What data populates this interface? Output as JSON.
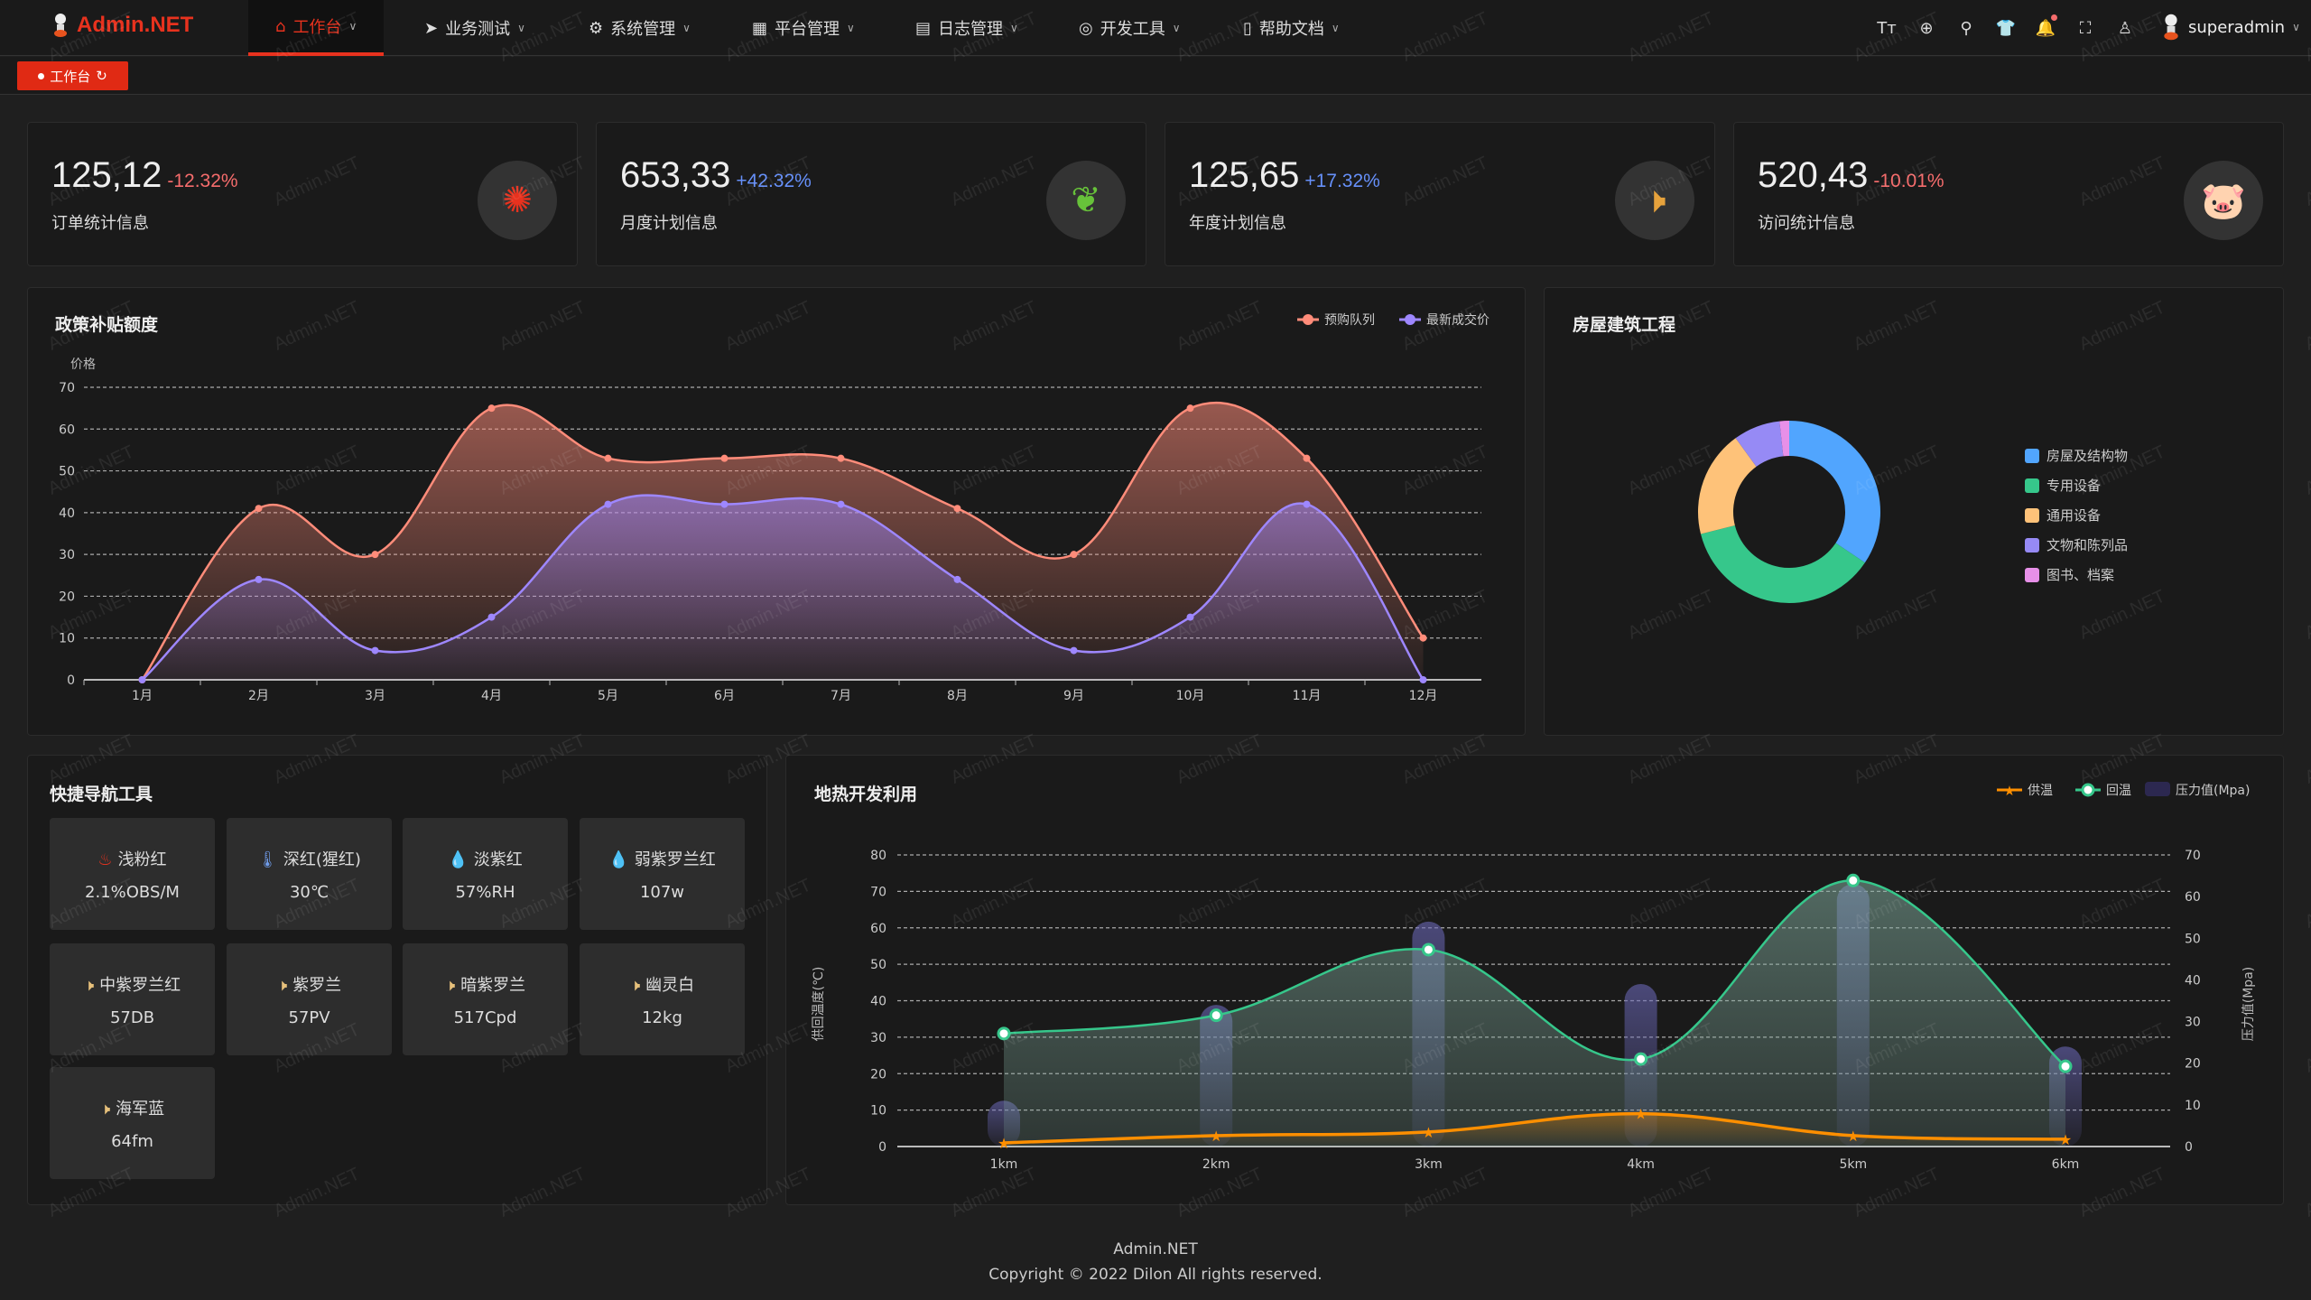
{
  "header": {
    "logo": "Admin.NET",
    "menu": [
      {
        "label": "工作台",
        "icon": "home-icon",
        "active": true
      },
      {
        "label": "业务测试",
        "icon": "send-icon"
      },
      {
        "label": "系统管理",
        "icon": "gear-icon"
      },
      {
        "label": "平台管理",
        "icon": "grid-icon"
      },
      {
        "label": "日志管理",
        "icon": "document-icon"
      },
      {
        "label": "开发工具",
        "icon": "chip-icon"
      },
      {
        "label": "帮助文档",
        "icon": "book-icon"
      }
    ],
    "tools": [
      "font-size-icon",
      "language-icon",
      "search-icon",
      "theme-shirt-icon",
      "bell-icon",
      "fullscreen-icon",
      "user-icon"
    ],
    "username": "superadmin"
  },
  "tags": [
    {
      "label": "工作台"
    }
  ],
  "stats": [
    {
      "value": "125,12",
      "change": "-12.32%",
      "label": "订单统计信息",
      "change_color": "#f56c6c",
      "icon": "rising-sun-icon",
      "icon_color": "#e8321e"
    },
    {
      "value": "653,33",
      "change": "+42.32%",
      "label": "月度计划信息",
      "change_color": "#6690f9",
      "icon": "china-map-icon",
      "icon_color": "#67c23a"
    },
    {
      "value": "125,65",
      "change": "+17.32%",
      "label": "年度计划信息",
      "change_color": "#6690f9",
      "icon": "speaker-icon",
      "icon_color": "#e6a23c"
    },
    {
      "value": "520,43",
      "change": "-10.01%",
      "label": "访问统计信息",
      "change_color": "#f56c6c",
      "icon": "pig-icon",
      "icon_color": "#f56c6c"
    }
  ],
  "policy_chart": {
    "title": "政策补贴额度"
  },
  "house_chart": {
    "title": "房屋建筑工程"
  },
  "nav_tools": {
    "title": "快捷导航工具",
    "items": [
      {
        "label": "浅粉红",
        "value": "2.1%OBS/M",
        "icon": "smoke-icon",
        "color": "#e8321e"
      },
      {
        "label": "深红(猩红)",
        "value": "30℃",
        "icon": "thermometer-icon",
        "color": "#6f9be8"
      },
      {
        "label": "淡紫红",
        "value": "57%RH",
        "icon": "drop-icon",
        "color": "#67c23a"
      },
      {
        "label": "弱紫罗兰红",
        "value": "107w",
        "icon": "drop-icon",
        "color": "#67c23a"
      },
      {
        "label": "中紫罗兰红",
        "value": "57DB",
        "icon": "speaker-icon",
        "color": "#e6c07b"
      },
      {
        "label": "紫罗兰",
        "value": "57PV",
        "icon": "speaker-icon",
        "color": "#e6c07b"
      },
      {
        "label": "暗紫罗兰",
        "value": "517Cpd",
        "icon": "speaker-icon",
        "color": "#e6c07b"
      },
      {
        "label": "幽灵白",
        "value": "12kg",
        "icon": "speaker-icon",
        "color": "#e6c07b"
      },
      {
        "label": "海军蓝",
        "value": "64fm",
        "icon": "speaker-icon",
        "color": "#e6c07b"
      }
    ]
  },
  "geo_chart": {
    "title": "地热开发利用"
  },
  "chart_data": [
    {
      "type": "area",
      "title": "政策补贴额度",
      "ylabel": "价格",
      "categories": [
        "1月",
        "2月",
        "3月",
        "4月",
        "5月",
        "6月",
        "7月",
        "8月",
        "9月",
        "10月",
        "11月",
        "12月"
      ],
      "ylim": [
        0,
        70
      ],
      "yticks": [
        0,
        10,
        20,
        30,
        40,
        50,
        60,
        70
      ],
      "grid": true,
      "legend": "top-right",
      "series": [
        {
          "name": "预购队列",
          "color": "#ff8c7a",
          "values": [
            0,
            41,
            30,
            65,
            53,
            53,
            53,
            41,
            30,
            65,
            53,
            10
          ]
        },
        {
          "name": "最新成交价",
          "color": "#9e87ff",
          "values": [
            0,
            24,
            7,
            15,
            42,
            42,
            42,
            24,
            7,
            15,
            42,
            0
          ]
        }
      ]
    },
    {
      "type": "pie",
      "title": "房屋建筑工程",
      "legend": "right",
      "slices": [
        {
          "name": "房屋及结构物",
          "value": 34.4,
          "color": "#51a5fe"
        },
        {
          "name": "专用设备",
          "value": 36.7,
          "color": "#36c78b"
        },
        {
          "name": "通用设备",
          "value": 18.9,
          "color": "#fec279"
        },
        {
          "name": "文物和陈列品",
          "value": 8.3,
          "color": "#968af5"
        },
        {
          "name": "图书、档案",
          "value": 1.7,
          "color": "#e790e8"
        }
      ]
    },
    {
      "type": "line+bar",
      "title": "地热开发利用",
      "categories": [
        "1km",
        "2km",
        "3km",
        "4km",
        "5km",
        "6km"
      ],
      "ylabel_left": "供回温度(℃)",
      "ylabel_right": "压力值(Mpa)",
      "ylim_left": [
        0,
        80
      ],
      "ylim_right": [
        0,
        70
      ],
      "yticks_left": [
        0,
        10,
        20,
        30,
        40,
        50,
        60,
        70,
        80
      ],
      "yticks_right": [
        0,
        10,
        20,
        30,
        40,
        50,
        60,
        70
      ],
      "grid": true,
      "legend": "top-right",
      "series": [
        {
          "name": "供温",
          "type": "line",
          "axis": "left",
          "color": "#fe8f00",
          "values": [
            1,
            3,
            4,
            9,
            3,
            2
          ]
        },
        {
          "name": "回温",
          "type": "line",
          "axis": "left",
          "color": "#36c78b",
          "values": [
            31,
            36,
            54,
            24,
            73,
            22
          ]
        },
        {
          "name": "压力值(Mpa)",
          "type": "bar",
          "axis": "right",
          "color": "#3b3564",
          "values": [
            11,
            34,
            54,
            39,
            63,
            24
          ]
        }
      ]
    }
  ],
  "watermark": "Admin.NET",
  "footer": {
    "brand": "Admin.NET",
    "copyright": "Copyright © 2022 Dilon All rights reserved."
  }
}
